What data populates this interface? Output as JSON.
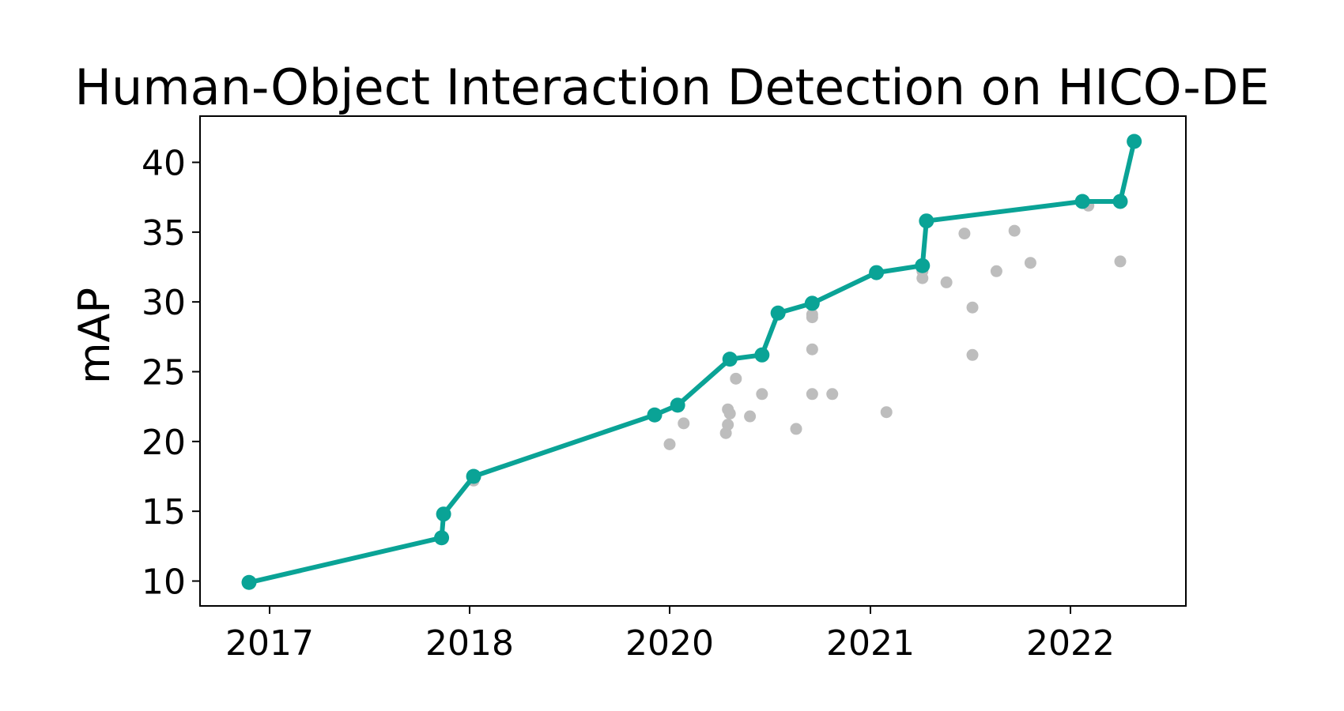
{
  "chart_data": {
    "type": "scatter",
    "title": "Human-Object Interaction Detection on HICO-DE",
    "xlabel": "",
    "ylabel": "mAP",
    "x_tick_labels": [
      "2017",
      "2018",
      "2020",
      "2021",
      "2022"
    ],
    "y_ticks": [
      10,
      15,
      20,
      25,
      30,
      35,
      40
    ],
    "ylim": [
      8.3,
      43.3
    ],
    "grid": false,
    "colors": {
      "frontier": "#0aa396",
      "other": "#bdbdbd",
      "axes": "#000000"
    },
    "series": [
      {
        "role": "frontier",
        "points": [
          {
            "x": 2016.89,
            "y": 9.9
          },
          {
            "x": 2017.86,
            "y": 13.1
          },
          {
            "x": 2017.87,
            "y": 14.8
          },
          {
            "x": 2018.04,
            "y": 17.5
          },
          {
            "x": 2019.85,
            "y": 21.9
          },
          {
            "x": 2020.04,
            "y": 22.6
          },
          {
            "x": 2020.3,
            "y": 25.9
          },
          {
            "x": 2020.46,
            "y": 26.2
          },
          {
            "x": 2020.54,
            "y": 29.2
          },
          {
            "x": 2020.71,
            "y": 29.9
          },
          {
            "x": 2021.03,
            "y": 32.1
          },
          {
            "x": 2021.26,
            "y": 32.6
          },
          {
            "x": 2021.28,
            "y": 35.8
          },
          {
            "x": 2022.06,
            "y": 37.2
          },
          {
            "x": 2022.25,
            "y": 37.2
          },
          {
            "x": 2022.32,
            "y": 41.5
          }
        ]
      },
      {
        "role": "other",
        "points": [
          {
            "x": 2018.04,
            "y": 17.2
          },
          {
            "x": 2020.0,
            "y": 19.8
          },
          {
            "x": 2020.07,
            "y": 21.3
          },
          {
            "x": 2020.28,
            "y": 20.6
          },
          {
            "x": 2020.29,
            "y": 21.2
          },
          {
            "x": 2020.29,
            "y": 22.3
          },
          {
            "x": 2020.3,
            "y": 22.0
          },
          {
            "x": 2020.33,
            "y": 24.5
          },
          {
            "x": 2020.4,
            "y": 21.8
          },
          {
            "x": 2020.46,
            "y": 23.4
          },
          {
            "x": 2020.63,
            "y": 20.9
          },
          {
            "x": 2020.71,
            "y": 29.1
          },
          {
            "x": 2020.71,
            "y": 28.9
          },
          {
            "x": 2020.71,
            "y": 26.6
          },
          {
            "x": 2020.71,
            "y": 23.4
          },
          {
            "x": 2020.81,
            "y": 23.4
          },
          {
            "x": 2021.08,
            "y": 22.1
          },
          {
            "x": 2021.26,
            "y": 31.7
          },
          {
            "x": 2021.26,
            "y": 32.2
          },
          {
            "x": 2021.38,
            "y": 31.4
          },
          {
            "x": 2021.47,
            "y": 34.9
          },
          {
            "x": 2021.51,
            "y": 29.6
          },
          {
            "x": 2021.51,
            "y": 26.2
          },
          {
            "x": 2021.63,
            "y": 32.2
          },
          {
            "x": 2021.72,
            "y": 35.1
          },
          {
            "x": 2021.8,
            "y": 32.8
          },
          {
            "x": 2022.09,
            "y": 36.9
          },
          {
            "x": 2022.25,
            "y": 32.9
          }
        ]
      }
    ]
  }
}
